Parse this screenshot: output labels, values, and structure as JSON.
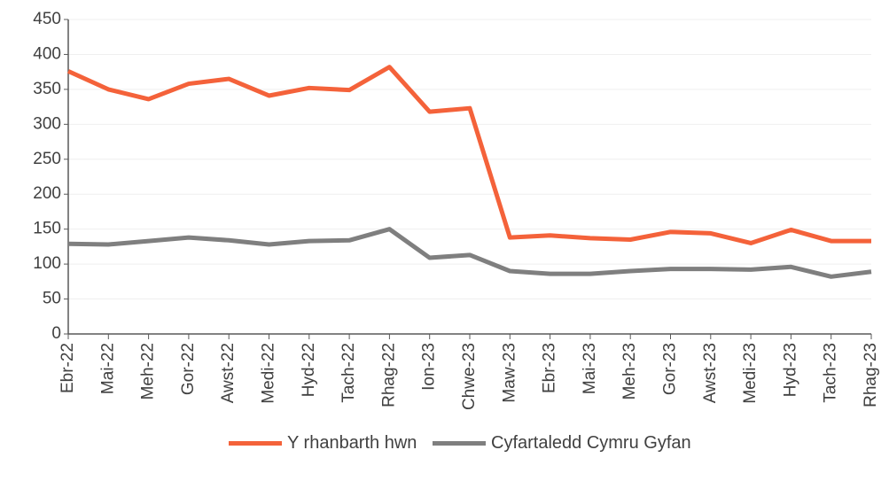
{
  "chart_data": {
    "type": "line",
    "categories": [
      "Ebr-22",
      "Mai-22",
      "Meh-22",
      "Gor-22",
      "Awst-22",
      "Medi-22",
      "Hyd-22",
      "Tach-22",
      "Rhag-22",
      "Ion-23",
      "Chwe-23",
      "Maw-23",
      "Ebr-23",
      "Mai-23",
      "Meh-23",
      "Gor-23",
      "Awst-23",
      "Medi-23",
      "Hyd-23",
      "Tach-23",
      "Rhag-23"
    ],
    "series": [
      {
        "name": "Y rhanbarth hwn",
        "color": "#f4623a",
        "values": [
          376,
          350,
          336,
          358,
          365,
          341,
          352,
          349,
          382,
          318,
          323,
          138,
          141,
          137,
          135,
          146,
          144,
          130,
          149,
          133,
          133
        ]
      },
      {
        "name": "Cyfartaledd Cymru Gyfan",
        "color": "#7f7f7f",
        "values": [
          129,
          128,
          133,
          138,
          134,
          128,
          133,
          134,
          150,
          109,
          113,
          90,
          86,
          86,
          90,
          93,
          93,
          92,
          96,
          82,
          89
        ]
      }
    ],
    "ylim": [
      0,
      450
    ],
    "yticks": [
      0,
      50,
      100,
      150,
      200,
      250,
      300,
      350,
      400,
      450
    ],
    "grid": true
  }
}
